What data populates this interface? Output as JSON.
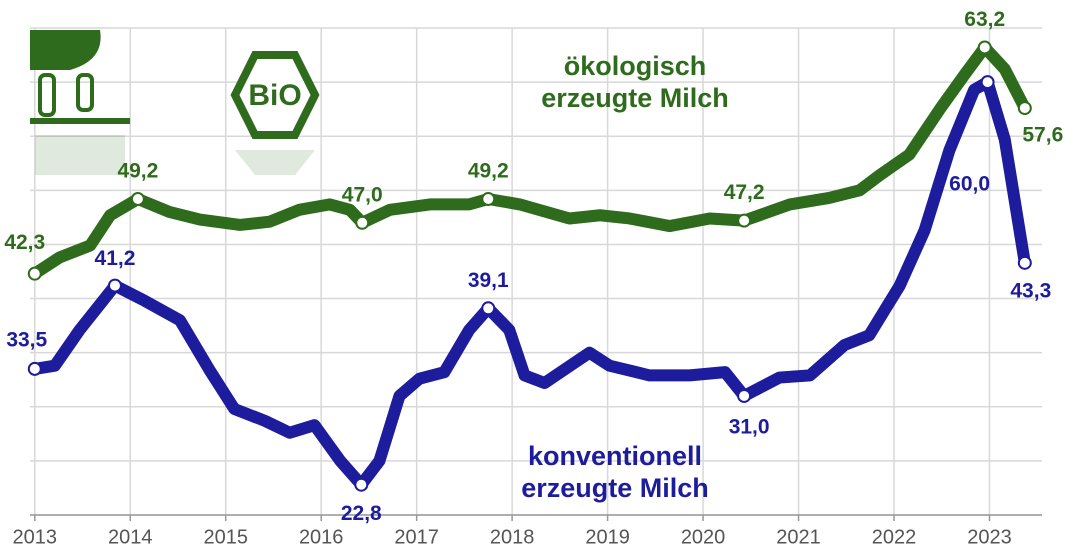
{
  "chart_data": {
    "type": "line",
    "logo_text": "BiO",
    "xlim": [
      2012.95,
      2023.55
    ],
    "xticks": [
      2013,
      2014,
      2015,
      2016,
      2017,
      2018,
      2019,
      2020,
      2021,
      2022,
      2023
    ],
    "ylim": [
      20,
      65
    ],
    "yticks": [
      20,
      25,
      30,
      35,
      40,
      45,
      50,
      55,
      60,
      65
    ],
    "grid": true,
    "series": [
      {
        "name": "ökologisch erzeugte Milch",
        "color": "#2e6b1c",
        "x": [
          2013.0,
          2013.26,
          2013.58,
          2013.79,
          2014.08,
          2014.41,
          2014.73,
          2015.15,
          2015.46,
          2015.77,
          2016.09,
          2016.3,
          2016.43,
          2016.72,
          2017.14,
          2017.55,
          2017.75,
          2018.08,
          2018.6,
          2018.92,
          2019.23,
          2019.65,
          2020.07,
          2020.43,
          2020.91,
          2021.32,
          2021.64,
          2021.85,
          2022.16,
          2022.48,
          2022.74,
          2022.95,
          2023.16,
          2023.37
        ],
        "values": [
          42.3,
          43.8,
          44.9,
          47.7,
          49.2,
          48.0,
          47.3,
          46.8,
          47.1,
          48.2,
          48.7,
          48.2,
          47.0,
          48.2,
          48.7,
          48.7,
          49.2,
          48.7,
          47.4,
          47.7,
          47.4,
          46.7,
          47.4,
          47.2,
          48.7,
          49.3,
          50.0,
          51.4,
          53.3,
          57.5,
          60.7,
          63.2,
          61.2,
          57.6
        ],
        "value_labels": [
          "42,3",
          null,
          null,
          null,
          "49,2",
          null,
          null,
          null,
          null,
          null,
          null,
          null,
          "47,0",
          null,
          null,
          null,
          "49,2",
          null,
          null,
          null,
          null,
          null,
          null,
          "47,2",
          null,
          null,
          null,
          null,
          null,
          null,
          null,
          "63,2",
          null,
          "57,6"
        ]
      },
      {
        "name": "konventionell erzeugte Milch",
        "color": "#1c1c9c",
        "x": [
          2013.0,
          2013.21,
          2013.47,
          2013.84,
          2014.15,
          2014.52,
          2014.83,
          2015.09,
          2015.41,
          2015.67,
          2015.93,
          2016.2,
          2016.42,
          2016.61,
          2016.82,
          2017.03,
          2017.29,
          2017.55,
          2017.75,
          2017.97,
          2018.13,
          2018.34,
          2018.81,
          2019.02,
          2019.44,
          2019.86,
          2020.23,
          2020.43,
          2020.8,
          2021.12,
          2021.48,
          2021.74,
          2022.06,
          2022.32,
          2022.58,
          2022.84,
          2022.98,
          2023.16,
          2023.37
        ],
        "values": [
          33.5,
          33.8,
          37.1,
          41.2,
          39.8,
          38.0,
          33.4,
          29.8,
          28.7,
          27.6,
          28.3,
          25.0,
          22.8,
          25.0,
          31.0,
          32.6,
          33.2,
          37.1,
          39.1,
          37.1,
          32.9,
          32.2,
          35.0,
          33.8,
          32.9,
          32.9,
          33.2,
          31.0,
          32.7,
          32.9,
          35.7,
          36.6,
          41.2,
          46.3,
          53.7,
          59.3,
          60.0,
          54.7,
          43.3
        ],
        "value_labels": [
          "33,5",
          null,
          null,
          "41,2",
          null,
          null,
          null,
          null,
          null,
          null,
          null,
          null,
          "22,8",
          null,
          null,
          null,
          null,
          null,
          "39,1",
          null,
          null,
          null,
          null,
          null,
          null,
          null,
          null,
          "31,0",
          null,
          null,
          null,
          null,
          null,
          null,
          null,
          null,
          "60,0",
          null,
          "43,3"
        ]
      }
    ]
  }
}
